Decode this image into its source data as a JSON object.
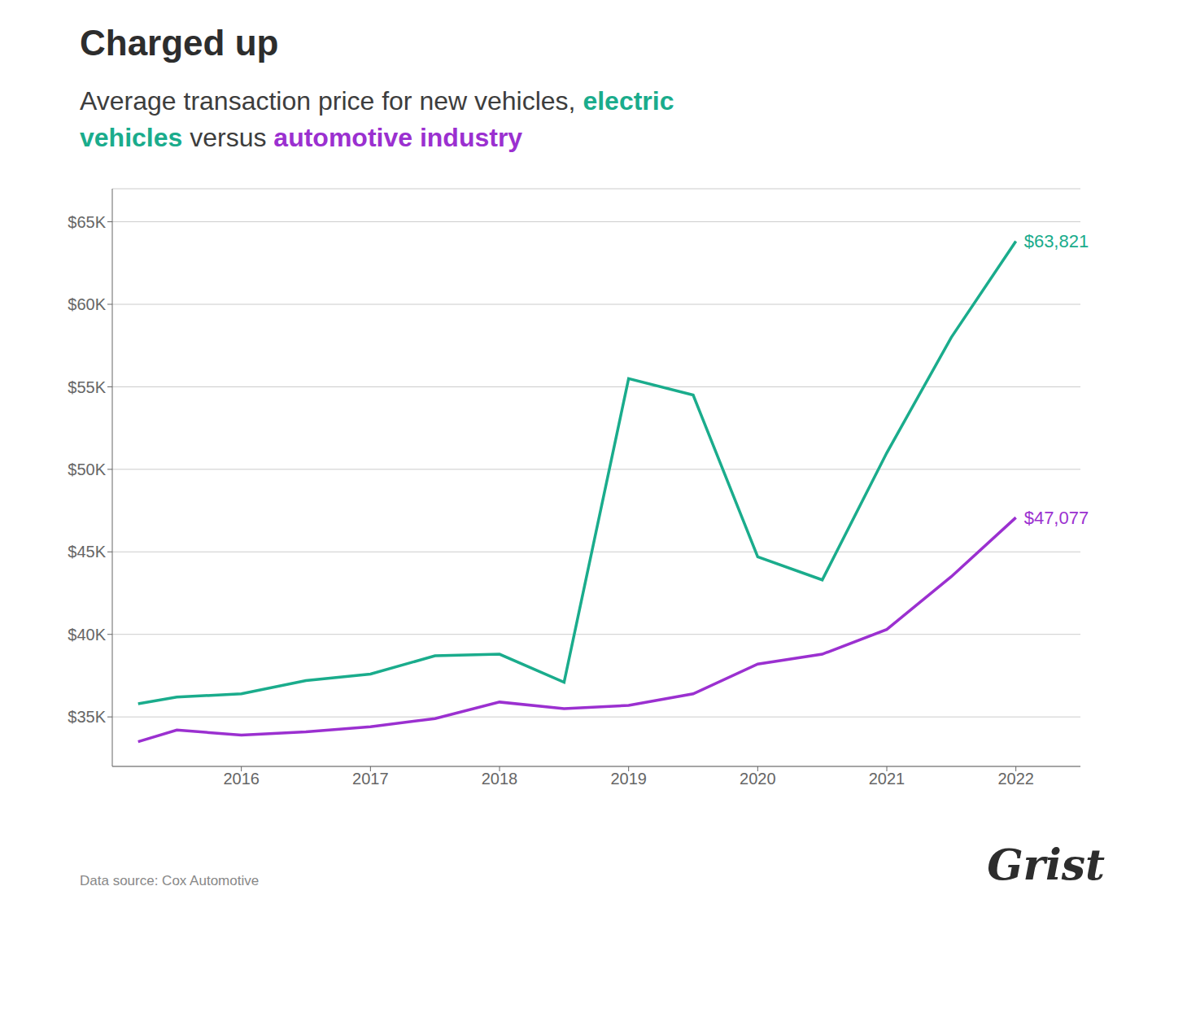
{
  "chart_data": {
    "type": "line",
    "title": "Charged up",
    "subtitle": "Average transaction price for new vehicles, electric vehicles versus automotive industry",
    "x": [
      2015.2,
      2015.5,
      2016,
      2016.5,
      2017,
      2017.5,
      2018,
      2018.5,
      2019,
      2019.5,
      2020,
      2020.5,
      2021,
      2021.5,
      2022
    ],
    "series": [
      {
        "name": "electric vehicles",
        "color": "#1aac8c",
        "values": [
          35800,
          36200,
          36400,
          37200,
          37600,
          38700,
          38800,
          37100,
          55500,
          54500,
          44700,
          43300,
          51000,
          58000,
          63821
        ]
      },
      {
        "name": "automotive industry",
        "color": "#9b30d0",
        "values": [
          33500,
          34200,
          33900,
          34100,
          34400,
          34900,
          35900,
          35500,
          35700,
          36400,
          38200,
          38800,
          40300,
          43500,
          47077
        ]
      }
    ],
    "xlim": [
      2015,
      2022.5
    ],
    "xticks": [
      2016,
      2017,
      2018,
      2019,
      2020,
      2021,
      2022
    ],
    "ylim": [
      32000,
      67000
    ],
    "yticks": [
      {
        "value": 35000,
        "label": "$35K"
      },
      {
        "value": 40000,
        "label": "$40K"
      },
      {
        "value": 45000,
        "label": "$45K"
      },
      {
        "value": 50000,
        "label": "$50K"
      },
      {
        "value": 55000,
        "label": "$55K"
      },
      {
        "value": 60000,
        "label": "$60K"
      },
      {
        "value": 65000,
        "label": "$65K"
      }
    ],
    "grid": true,
    "annotations": [
      {
        "text": "$63,821",
        "x": 2022,
        "y": 63821,
        "color": "#1aac8c"
      },
      {
        "text": "$47,077",
        "x": 2022,
        "y": 47077,
        "color": "#9b30d0"
      }
    ],
    "source": "Data source: Cox Automotive",
    "logo": "Grist"
  }
}
